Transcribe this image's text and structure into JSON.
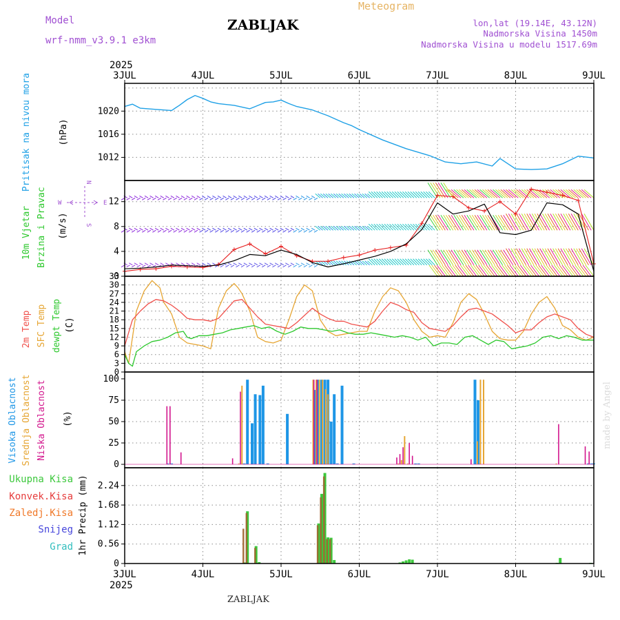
{
  "header": {
    "model_label": "Model",
    "model_name": "wrf-nmm_v3.9.1 e3km",
    "title": "ZABLJAK",
    "meteogram_label": "Meteogram",
    "lonlat": "lon,lat (19.14E, 43.12N)",
    "elevation": "Nadmorska Visina 1450m",
    "model_elevation": "Nadmorska Visina u modelu 1517.69m",
    "footer_title": "ZABLJAK",
    "watermark": "made by Angel"
  },
  "colors": {
    "pressure": "#1EA0E6",
    "temp2m": "#F0504B",
    "sfc": "#E6A532",
    "dewpt": "#2DC82D",
    "high_cloud": "#1E96E6",
    "mid_cloud": "#E6A532",
    "low_cloud": "#D2148C",
    "total_precip": "#3CC83C",
    "conv_precip": "#E63C3C",
    "frozen_precip": "#F07828",
    "snow": "#4646DC",
    "grad": "#32BEBE",
    "purple": "#A050D2",
    "gust": "#E61E1E"
  },
  "chart_data": {
    "type": "meteogram",
    "year_top": "2025",
    "year_bottom": "2025",
    "x_day_labels": [
      "3JUL",
      "4JUL",
      "5JUL",
      "6JUL",
      "7JUL",
      "8JUL",
      "9JUL"
    ],
    "panels": [
      {
        "id": "pressure",
        "type": "line",
        "ylabel_main": "Pritisak na nivou mora",
        "ylabel_unit": "(hPa)",
        "ylim": [
          1008,
          1024.8
        ],
        "yticks": [
          1012,
          1016,
          1020
        ],
        "grid_y": [
          1012,
          1016,
          1020,
          1024
        ],
        "series": [
          {
            "name": "Pritisak na nivou mora",
            "x": [
              0,
              0.1,
              0.2,
              0.4,
              0.6,
              0.7,
              0.8,
              0.9,
              1.0,
              1.1,
              1.2,
              1.4,
              1.6,
              1.8,
              1.9,
              2.0,
              2.1,
              2.2,
              2.4,
              2.6,
              2.8,
              2.9,
              3.0,
              3.3,
              3.6,
              3.9,
              4.1,
              4.3,
              4.5,
              4.7,
              4.8,
              5.0,
              5.2,
              5.4,
              5.6,
              5.8,
              6.0
            ],
            "values": [
              1020.8,
              1021.2,
              1020.5,
              1020.3,
              1020.1,
              1021.0,
              1022.0,
              1022.7,
              1022.2,
              1021.6,
              1021.3,
              1021.0,
              1020.4,
              1021.5,
              1021.6,
              1021.9,
              1021.3,
              1020.8,
              1020.2,
              1019.2,
              1018.0,
              1017.5,
              1016.8,
              1015.0,
              1013.5,
              1012.3,
              1011.2,
              1010.9,
              1011.2,
              1010.5,
              1011.8,
              1010.0,
              1009.9,
              1010.0,
              1010.9,
              1012.2,
              1011.9
            ]
          }
        ]
      },
      {
        "id": "wind",
        "type": "line+barbs",
        "ylabel_main": "10m Vjetar",
        "ylabel_main2": "Brzina i Pravac",
        "ylabel_unit": "(m/s)",
        "compass": {
          "w": "W",
          "e": "E",
          "n": "N",
          "s": "S"
        },
        "ylim": [
          0,
          15.4
        ],
        "yticks": [
          0,
          4,
          8,
          12
        ],
        "grid_y": [
          4,
          8,
          12
        ],
        "series": [
          {
            "name": "Brzina",
            "x": [
              0,
              0.2,
              0.4,
              0.6,
              0.8,
              1.0,
              1.2,
              1.4,
              1.6,
              1.8,
              2.0,
              2.2,
              2.4,
              2.6,
              2.8,
              3.0,
              3.2,
              3.4,
              3.6,
              3.8,
              4.0,
              4.2,
              4.4,
              4.6,
              4.8,
              5.0,
              5.2,
              5.4,
              5.6,
              5.8,
              6.0
            ],
            "values": [
              1.2,
              1.3,
              1.5,
              1.8,
              1.7,
              1.6,
              1.8,
              2.5,
              3.5,
              3.3,
              4.2,
              3.5,
              2.2,
              1.5,
              2.0,
              2.6,
              3.2,
              4.0,
              5.2,
              7.5,
              11.8,
              10.0,
              10.5,
              11.6,
              7.0,
              6.7,
              7.4,
              11.8,
              11.5,
              10.0,
              0.8
            ]
          },
          {
            "name": "Udari",
            "x": [
              0,
              0.2,
              0.4,
              0.6,
              0.8,
              1.0,
              1.2,
              1.4,
              1.6,
              1.8,
              2.0,
              2.2,
              2.4,
              2.6,
              2.8,
              3.0,
              3.2,
              3.4,
              3.6,
              3.8,
              4.0,
              4.2,
              4.4,
              4.6,
              4.8,
              5.0,
              5.2,
              5.4,
              5.6,
              5.8,
              6.0
            ],
            "values": [
              0.8,
              1.1,
              1.2,
              1.6,
              1.5,
              1.4,
              1.9,
              4.3,
              5.2,
              3.6,
              4.8,
              3.3,
              2.4,
              2.4,
              3.0,
              3.4,
              4.2,
              4.6,
              5.0,
              8.5,
              13.0,
              12.8,
              11.0,
              10.5,
              12.0,
              10.0,
              14.0,
              13.5,
              13.0,
              12.2,
              2.0
            ]
          }
        ],
        "barb_rows_at": [
          1.8,
          7.4,
          12.6,
          15.4
        ]
      },
      {
        "id": "temperature",
        "type": "line",
        "ylabel_main": "2m Temp",
        "ylabel_main2": "SFC Temp",
        "ylabel_main3": "dewpt Temp",
        "ylabel_unit": "(C)",
        "ylim": [
          0,
          33
        ],
        "yticks": [
          0,
          3,
          6,
          9,
          12,
          15,
          18,
          21,
          24,
          27,
          30,
          33
        ],
        "grid_y": [
          3,
          6,
          9,
          12,
          15,
          18,
          21,
          24,
          27,
          30
        ],
        "series": [
          {
            "name": "2m Temp",
            "x": [
              0,
              0.1,
              0.2,
              0.3,
              0.4,
              0.5,
              0.6,
              0.7,
              0.8,
              0.9,
              1.0,
              1.1,
              1.2,
              1.3,
              1.4,
              1.5,
              1.6,
              1.7,
              1.8,
              1.9,
              2.0,
              2.1,
              2.2,
              2.3,
              2.4,
              2.5,
              2.6,
              2.7,
              2.8,
              2.9,
              3.0,
              3.1,
              3.2,
              3.3,
              3.4,
              3.5,
              3.6,
              3.7,
              3.8,
              3.9,
              4.0,
              4.1,
              4.2,
              4.3,
              4.4,
              4.5,
              4.6,
              4.7,
              4.8,
              4.9,
              5.0,
              5.1,
              5.2,
              5.3,
              5.4,
              5.5,
              5.6,
              5.7,
              5.8,
              5.9,
              6.0
            ],
            "values": [
              9,
              18,
              21,
              23.5,
              25,
              24.5,
              23,
              21,
              18.5,
              18,
              18,
              17.5,
              18.5,
              21.5,
              24.5,
              25,
              22,
              19,
              16.5,
              16,
              15.5,
              15,
              17,
              19.5,
              22,
              20,
              18.5,
              17.5,
              17.5,
              16.5,
              16,
              15.5,
              17.5,
              21,
              24,
              23,
              21.5,
              20.5,
              17,
              15,
              14.5,
              14,
              16,
              19,
              21.5,
              22,
              21,
              20,
              18,
              16,
              13.5,
              14.5,
              14.5,
              17,
              19,
              20,
              19,
              18,
              15,
              13,
              12
            ]
          },
          {
            "name": "SFC Temp",
            "x": [
              0,
              0.05,
              0.15,
              0.25,
              0.35,
              0.45,
              0.5,
              0.6,
              0.7,
              0.8,
              0.9,
              1.0,
              1.1,
              1.2,
              1.3,
              1.4,
              1.45,
              1.5,
              1.6,
              1.7,
              1.8,
              1.9,
              2.0,
              2.1,
              2.2,
              2.3,
              2.4,
              2.5,
              2.6,
              2.7,
              2.8,
              2.9,
              3.0,
              3.1,
              3.2,
              3.3,
              3.4,
              3.5,
              3.6,
              3.7,
              3.8,
              3.9,
              4.0,
              4.1,
              4.2,
              4.3,
              4.4,
              4.5,
              4.6,
              4.7,
              4.8,
              4.9,
              5.0,
              5.1,
              5.2,
              5.3,
              5.4,
              5.5,
              5.6,
              5.7,
              5.8,
              5.9,
              6.0
            ],
            "values": [
              7,
              3,
              21,
              28,
              31.5,
              29,
              24,
              20,
              12,
              10,
              9.5,
              9,
              8,
              22,
              28,
              30.5,
              29,
              27,
              21,
              12,
              10.5,
              10,
              11,
              18,
              26,
              30,
              28,
              18,
              14,
              12.5,
              13,
              13.5,
              14,
              14,
              21,
              26,
              29,
              28,
              24,
              18,
              14,
              12,
              12.5,
              12,
              17,
              24,
              27,
              25,
              20,
              14,
              11.5,
              11,
              11,
              14,
              20,
              24,
              26,
              22,
              16,
              14.5,
              12,
              11,
              12
            ]
          },
          {
            "name": "dewpt Temp",
            "x": [
              0,
              0.05,
              0.1,
              0.15,
              0.25,
              0.35,
              0.45,
              0.55,
              0.65,
              0.75,
              0.8,
              0.85,
              0.95,
              1.05,
              1.15,
              1.25,
              1.35,
              1.45,
              1.55,
              1.65,
              1.75,
              1.85,
              1.95,
              2.05,
              2.15,
              2.25,
              2.35,
              2.45,
              2.55,
              2.65,
              2.75,
              2.85,
              2.95,
              3.05,
              3.15,
              3.25,
              3.35,
              3.45,
              3.55,
              3.65,
              3.75,
              3.85,
              3.95,
              4.05,
              4.15,
              4.25,
              4.35,
              4.45,
              4.55,
              4.65,
              4.75,
              4.85,
              4.95,
              5.05,
              5.15,
              5.25,
              5.35,
              5.45,
              5.55,
              5.65,
              5.75,
              5.85,
              6.0
            ],
            "values": [
              6,
              3,
              2,
              7,
              9,
              10.5,
              11,
              12,
              13.5,
              14,
              12,
              11.5,
              12.5,
              12.5,
              13,
              13.5,
              14.5,
              15,
              15.5,
              16,
              15,
              15.5,
              14,
              13,
              14,
              15.5,
              15,
              15,
              14.5,
              14,
              14.5,
              13.5,
              13,
              13,
              13.5,
              13,
              12.5,
              12,
              12.5,
              12,
              11,
              12,
              9,
              10,
              10,
              9.5,
              12,
              12.5,
              11,
              9.5,
              11,
              10.5,
              8,
              8.5,
              9,
              10,
              12,
              12.5,
              11.5,
              12.5,
              12,
              11,
              11
            ]
          }
        ]
      },
      {
        "id": "cloud",
        "type": "bar",
        "ylabel_main": "Visoka Oblacnost",
        "ylabel_main2": "Srednja Oblacnost",
        "ylabel_main3": "Niska Oblacnost",
        "ylabel_unit": "(%)",
        "ylim": [
          -4,
          108
        ],
        "yticks": [
          0,
          25,
          50,
          75,
          100
        ],
        "grid_y": [
          25,
          50,
          75
        ],
        "series": [
          {
            "name": "Visoka Oblacnost",
            "x": [
              0.55,
              0.6,
              1.53,
              1.57,
              1.63,
              1.67,
              1.73,
              1.77,
              1.83,
              2.08,
              2.43,
              2.47,
              2.52,
              2.56,
              2.6,
              2.64,
              2.68,
              2.72,
              2.78,
              2.93,
              3.72,
              3.76,
              4.48,
              4.52,
              5.93,
              5.97,
              6.0
            ],
            "values": [
              1,
              1,
              1,
              99,
              48,
              82,
              81,
              92,
              1,
              59,
              87,
              99,
              99,
              99,
              99,
              50,
              82,
              1,
              92,
              1,
              1,
              1,
              99,
              75,
              1,
              1,
              1
            ]
          },
          {
            "name": "Srednja Oblacnost",
            "x": [
              1.46,
              1.5,
              2.41,
              2.45,
              2.49,
              2.53,
              2.57,
              2.6,
              3.5,
              3.54,
              3.58,
              3.62,
              4.51,
              4.55,
              4.59,
              5.52
            ],
            "values": [
              1,
              92,
              99,
              99,
              99,
              99,
              88,
              82,
              1,
              5,
              33,
              1,
              27,
              99,
              99,
              1
            ]
          },
          {
            "name": "Niska Oblacnost",
            "x": [
              0.54,
              0.58,
              0.72,
              1.38,
              1.48,
              2.42,
              2.46,
              3.48,
              3.52,
              3.56,
              3.64,
              3.68,
              4.43,
              5.55,
              5.89,
              5.94
            ],
            "values": [
              68,
              68,
              14,
              7,
              85,
              99,
              99,
              8,
              12,
              20,
              25,
              10,
              6,
              47,
              21,
              15
            ]
          }
        ]
      },
      {
        "id": "precip",
        "type": "bar",
        "ylabel_unit": "1hr Precip (mm)",
        "legend": [
          "Ukupna Kisa",
          "Konvek.Kisa",
          "Zaledj.Kisa",
          "Snijeg",
          "Grad"
        ],
        "ylim": [
          0,
          2.75
        ],
        "yticks": [
          0,
          0.56,
          1.12,
          1.68,
          2.24
        ],
        "ytick_labels": [
          "0",
          "0.56",
          "1.12",
          "1.68",
          "2.24"
        ],
        "grid_y": [
          0.56,
          1.12,
          1.68,
          2.24
        ],
        "series": [
          {
            "name": "Ukupna Kisa",
            "x": [
              1.53,
              1.57,
              1.68,
              1.72,
              2.48,
              2.52,
              2.56,
              2.6,
              2.64,
              2.68,
              3.52,
              3.56,
              3.6,
              3.64,
              3.68,
              5.53,
              5.57,
              5.96
            ],
            "values": [
              0.03,
              1.5,
              0.5,
              0.04,
              1.15,
              2.0,
              2.6,
              0.75,
              0.74,
              0.1,
              0.03,
              0.06,
              0.09,
              0.12,
              0.11,
              0.02,
              0.16,
              0.02
            ]
          },
          {
            "name": "Konvek.Kisa",
            "x": [
              1.52,
              1.56,
              1.67,
              2.47,
              2.51,
              2.55,
              2.59,
              2.63
            ],
            "values": [
              1.0,
              1.45,
              0.45,
              1.1,
              1.9,
              2.5,
              0.7,
              0.7
            ]
          }
        ]
      }
    ]
  }
}
